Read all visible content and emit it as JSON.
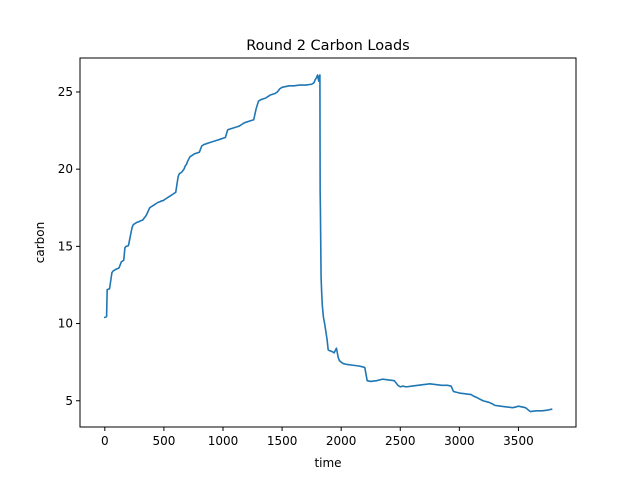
{
  "chart_data": {
    "type": "line",
    "title": "Round 2 Carbon Loads",
    "xlabel": "time",
    "ylabel": "carbon",
    "xlim": [
      -210,
      3987
    ],
    "ylim": [
      3.3,
      27.2
    ],
    "xticks": [
      0,
      500,
      1000,
      1500,
      2000,
      2500,
      3000,
      3500
    ],
    "yticks": [
      5,
      10,
      15,
      20,
      25
    ],
    "xtick_labels": [
      "0",
      "500",
      "1000",
      "1500",
      "2000",
      "2500",
      "3000",
      "3500"
    ],
    "ytick_labels": [
      "5",
      "10",
      "15",
      "20",
      "25"
    ],
    "grid": false,
    "legend": "none",
    "series": [
      {
        "color": "#1f77b4",
        "x": [
          0,
          15,
          20,
          40,
          60,
          70,
          90,
          120,
          140,
          160,
          170,
          180,
          200,
          230,
          240,
          260,
          270,
          290,
          300,
          320,
          340,
          350,
          380,
          400,
          420,
          440,
          450,
          470,
          480,
          490,
          500,
          520,
          540,
          560,
          580,
          600,
          620,
          630,
          650,
          670,
          680,
          690,
          700,
          720,
          740,
          760,
          780,
          800,
          820,
          840,
          860,
          880,
          900,
          920,
          940,
          960,
          980,
          1000,
          1020,
          1040,
          1060,
          1080,
          1100,
          1120,
          1140,
          1160,
          1180,
          1200,
          1220,
          1240,
          1260,
          1280,
          1300,
          1320,
          1340,
          1360,
          1380,
          1400,
          1420,
          1440,
          1460,
          1480,
          1500,
          1530,
          1560,
          1600,
          1650,
          1700,
          1750,
          1770,
          1780,
          1790,
          1800,
          1810,
          1815,
          1820,
          1822,
          1824,
          1826,
          1828,
          1830,
          1835,
          1840,
          1845,
          1850,
          1860,
          1870,
          1880,
          1890,
          1900,
          1920,
          1940,
          1960,
          1975,
          1985,
          2000,
          2020,
          2050,
          2100,
          2150,
          2180,
          2200,
          2220,
          2250,
          2300,
          2350,
          2400,
          2450,
          2480,
          2500,
          2520,
          2550,
          2600,
          2650,
          2700,
          2750,
          2800,
          2850,
          2900,
          2930,
          2950,
          3000,
          3050,
          3100,
          3120,
          3150,
          3200,
          3250,
          3280,
          3300,
          3350,
          3400,
          3450,
          3480,
          3500,
          3530,
          3560,
          3600,
          3650,
          3700,
          3750,
          3780
        ],
        "y": [
          10.4,
          10.45,
          12.2,
          12.25,
          13.3,
          13.4,
          13.5,
          13.6,
          14.0,
          14.1,
          14.9,
          15.0,
          15.05,
          16.2,
          16.4,
          16.5,
          16.55,
          16.6,
          16.65,
          16.7,
          16.9,
          17.0,
          17.5,
          17.6,
          17.7,
          17.8,
          17.85,
          17.9,
          17.95,
          17.95,
          18.0,
          18.1,
          18.2,
          18.3,
          18.4,
          18.5,
          19.5,
          19.7,
          19.8,
          20.0,
          20.2,
          20.3,
          20.5,
          20.8,
          20.9,
          21.0,
          21.05,
          21.1,
          21.5,
          21.6,
          21.65,
          21.7,
          21.75,
          21.8,
          21.85,
          21.9,
          21.95,
          22.0,
          22.05,
          22.55,
          22.6,
          22.65,
          22.7,
          22.75,
          22.8,
          22.9,
          23.0,
          23.05,
          23.1,
          23.15,
          23.2,
          23.9,
          24.4,
          24.5,
          24.55,
          24.6,
          24.7,
          24.8,
          24.85,
          24.9,
          25.0,
          25.2,
          25.3,
          25.35,
          25.4,
          25.4,
          25.45,
          25.45,
          25.5,
          25.6,
          25.8,
          25.9,
          26.1,
          25.7,
          26.0,
          26.1,
          18.6,
          17.5,
          16.0,
          14.5,
          13.0,
          12.0,
          11.2,
          10.8,
          10.4,
          10.0,
          9.5,
          9.0,
          8.3,
          8.25,
          8.2,
          8.1,
          8.4,
          7.8,
          7.6,
          7.5,
          7.4,
          7.35,
          7.3,
          7.25,
          7.2,
          7.15,
          6.3,
          6.25,
          6.3,
          6.4,
          6.35,
          6.3,
          6.0,
          5.9,
          5.95,
          5.9,
          5.95,
          6.0,
          6.05,
          6.1,
          6.05,
          6.0,
          6.0,
          5.95,
          5.6,
          5.5,
          5.45,
          5.4,
          5.3,
          5.2,
          5.0,
          4.9,
          4.8,
          4.7,
          4.65,
          4.6,
          4.55,
          4.6,
          4.65,
          4.6,
          4.55,
          4.3,
          4.35,
          4.35,
          4.4,
          4.45
        ]
      }
    ]
  }
}
